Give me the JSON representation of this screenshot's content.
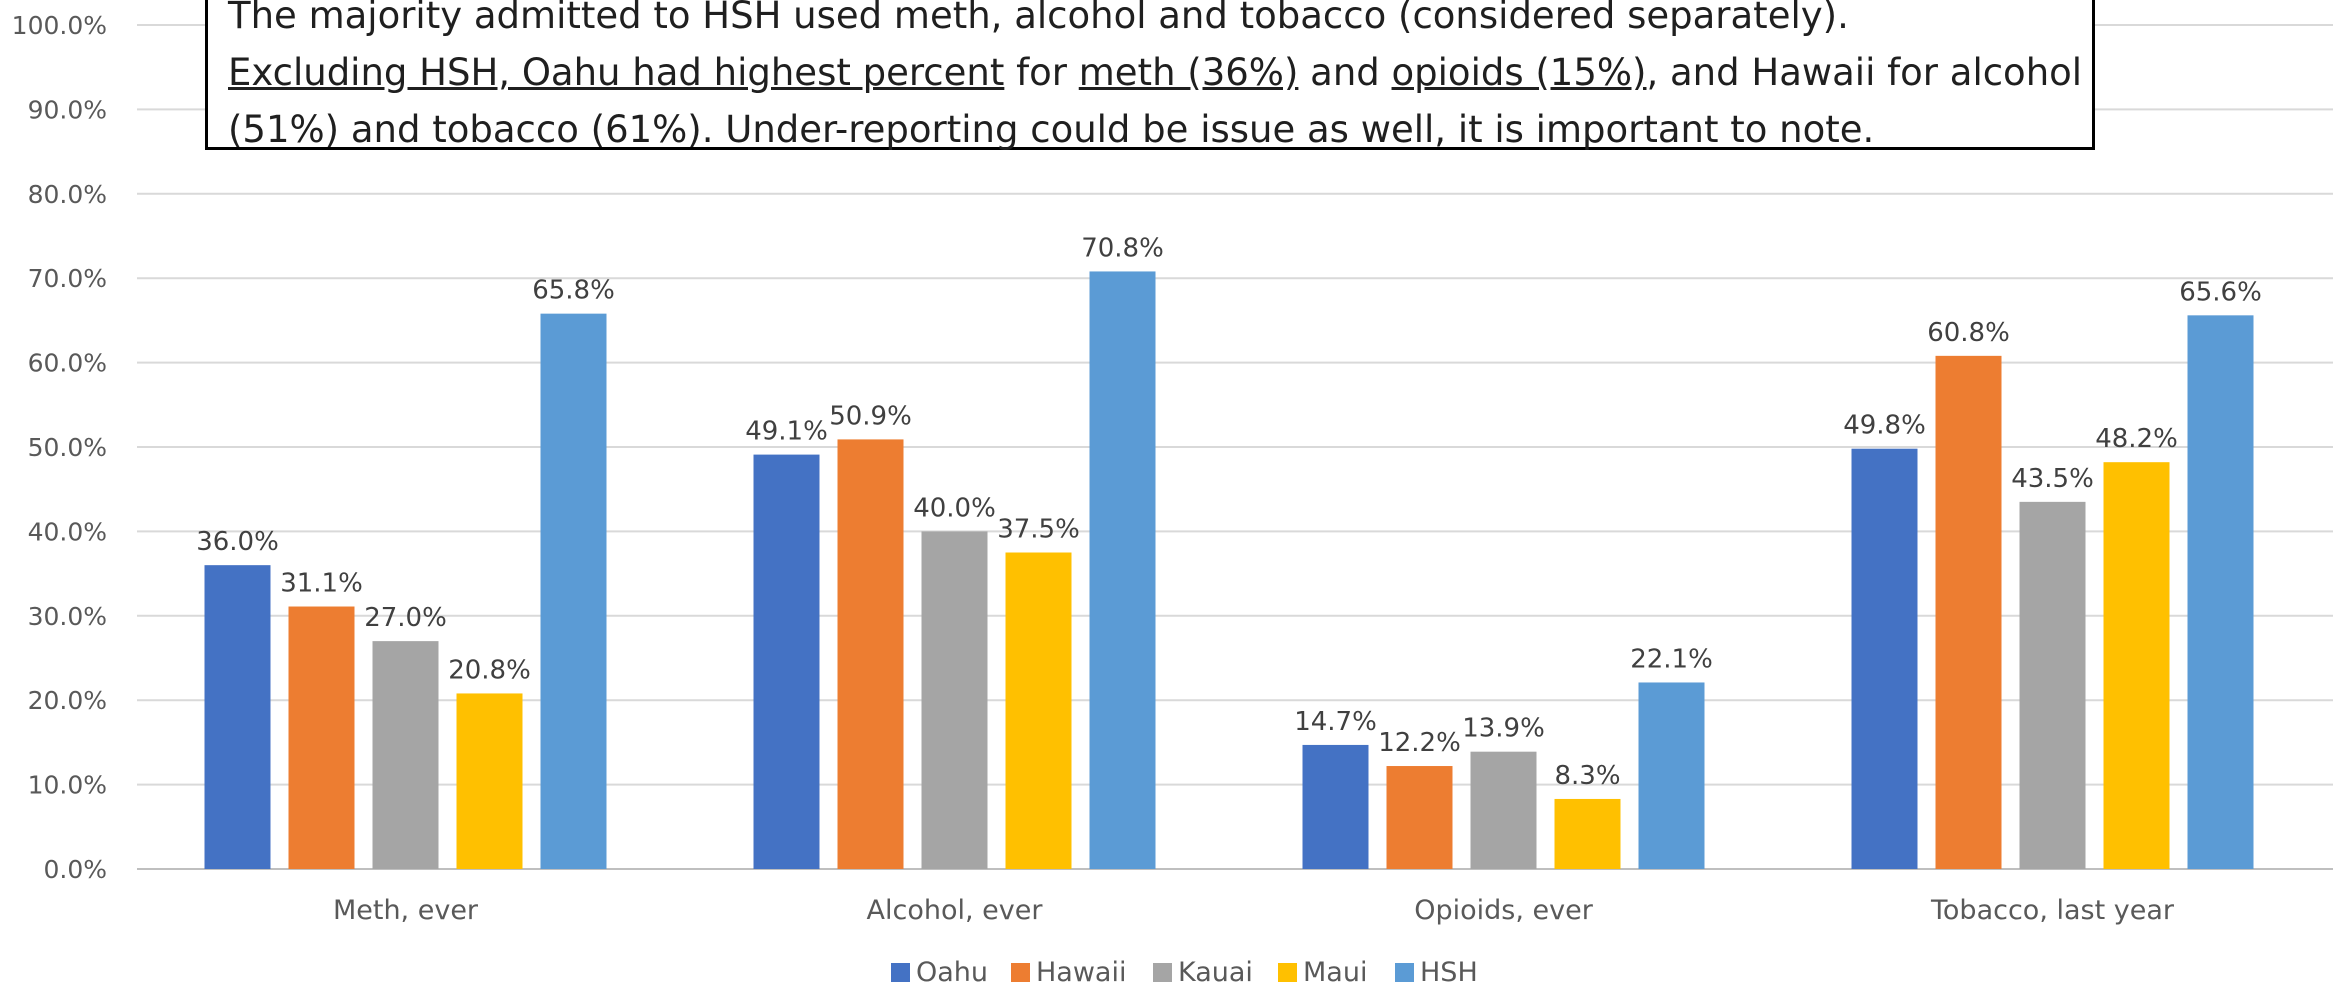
{
  "callout": {
    "line1": "The majority admitted to HSH used meth, alcohol and tobacco (considered separately).",
    "line2_a": "Excluding HSH, Oahu had highest percent",
    "line2_b": " for ",
    "line2_c": "meth (36%)",
    "line2_d": " and ",
    "line2_e": "opioids (15%)",
    "line2_f": ", and Hawaii for alcohol",
    "line3": "(51%) and tobacco (61%). Under-reporting could be issue as well, it is important to note."
  },
  "chart_data": {
    "type": "bar",
    "categories": [
      "Meth, ever",
      "Alcohol, ever",
      "Opioids, ever",
      "Tobacco, last year"
    ],
    "series": [
      {
        "name": "Oahu",
        "color": "#4472c4",
        "values": [
          36.0,
          49.1,
          14.7,
          49.8
        ]
      },
      {
        "name": "Hawaii",
        "color": "#ed7d31",
        "values": [
          31.1,
          50.9,
          12.2,
          60.8
        ]
      },
      {
        "name": "Kauai",
        "color": "#a5a5a5",
        "values": [
          27.0,
          40.0,
          13.9,
          43.5
        ]
      },
      {
        "name": "Maui",
        "color": "#ffc000",
        "values": [
          20.8,
          37.5,
          8.3,
          48.2
        ]
      },
      {
        "name": "HSH",
        "color": "#5b9bd5",
        "values": [
          65.8,
          70.8,
          22.1,
          65.6
        ]
      }
    ],
    "data_labels": [
      [
        "36.0%",
        "49.1%",
        "14.7%",
        "49.8%"
      ],
      [
        "31.1%",
        "50.9%",
        "12.2%",
        "60.8%"
      ],
      [
        "27.0%",
        "40.0%",
        "13.9%",
        "43.5%"
      ],
      [
        "20.8%",
        "37.5%",
        "8.3%",
        "48.2%"
      ],
      [
        "65.8%",
        "70.8%",
        "22.1%",
        "65.6%"
      ]
    ],
    "ylim": [
      0,
      100
    ],
    "y_ticks": [
      0,
      10,
      20,
      30,
      40,
      50,
      60,
      70,
      80,
      90,
      100
    ],
    "y_tick_labels": [
      "0.0%",
      "10.0%",
      "20.0%",
      "30.0%",
      "40.0%",
      "50.0%",
      "60.0%",
      "70.0%",
      "80.0%",
      "90.0%",
      "100.0%"
    ],
    "grid": true,
    "legend_position": "bottom",
    "title": "",
    "xlabel": "",
    "ylabel": ""
  }
}
